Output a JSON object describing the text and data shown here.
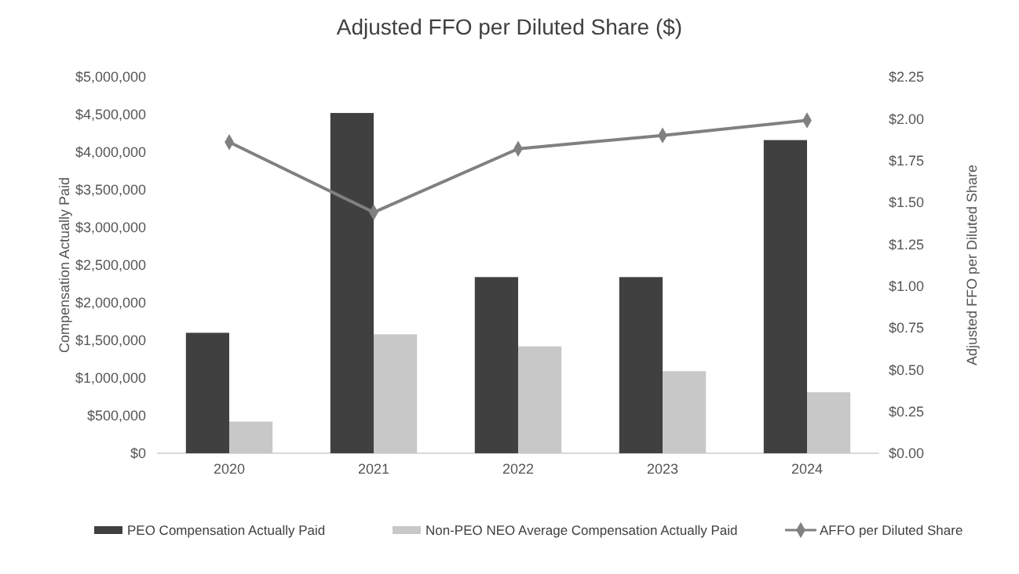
{
  "chart_data": {
    "type": "bar",
    "title": "Adjusted FFO per Diluted Share ($)",
    "ylabel": "Compensation Actually Paid",
    "y2label": "Adjusted FFO per Diluted Share",
    "categories": [
      "2020",
      "2021",
      "2022",
      "2023",
      "2024"
    ],
    "series": [
      {
        "name": "PEO Compensation Actually Paid",
        "color": "#404040",
        "values": [
          1600000,
          4520000,
          2340000,
          2340000,
          4160000
        ]
      },
      {
        "name": "Non-PEO NEO Average Compensation Actually Paid",
        "color": "#c8c8c8",
        "values": [
          420000,
          1580000,
          1420000,
          1090000,
          810000
        ]
      },
      {
        "name": "AFFO per Diluted Share",
        "type": "line",
        "axis": "y2",
        "color": "#808080",
        "marker": "diamond",
        "values": [
          1.86,
          1.44,
          1.82,
          1.9,
          1.99
        ]
      }
    ],
    "ylim": [
      0,
      5000000
    ],
    "yticks": [
      {
        "value": 0,
        "label": "$0"
      },
      {
        "value": 500000,
        "label": "$500,000"
      },
      {
        "value": 1000000,
        "label": "$1,000,000"
      },
      {
        "value": 1500000,
        "label": "$1,500,000"
      },
      {
        "value": 2000000,
        "label": "$2,000,000"
      },
      {
        "value": 2500000,
        "label": "$2,500,000"
      },
      {
        "value": 3000000,
        "label": "$3,000,000"
      },
      {
        "value": 3500000,
        "label": "$3,500,000"
      },
      {
        "value": 4000000,
        "label": "$4,000,000"
      },
      {
        "value": 4500000,
        "label": "$4,500,000"
      },
      {
        "value": 5000000,
        "label": "$5,000,000"
      }
    ],
    "y2lim": [
      0,
      2.25
    ],
    "y2ticks": [
      {
        "value": 0,
        "label": "$0.00"
      },
      {
        "value": 0.25,
        "label": "$0.25"
      },
      {
        "value": 0.5,
        "label": "$0.50"
      },
      {
        "value": 0.75,
        "label": "$0.75"
      },
      {
        "value": 1,
        "label": "$1.00"
      },
      {
        "value": 1.25,
        "label": "$1.25"
      },
      {
        "value": 1.5,
        "label": "$1.50"
      },
      {
        "value": 1.75,
        "label": "$1.75"
      },
      {
        "value": 2,
        "label": "$2.00"
      },
      {
        "value": 2.25,
        "label": "$2.25"
      }
    ],
    "grid": false,
    "legend": "bottom"
  }
}
